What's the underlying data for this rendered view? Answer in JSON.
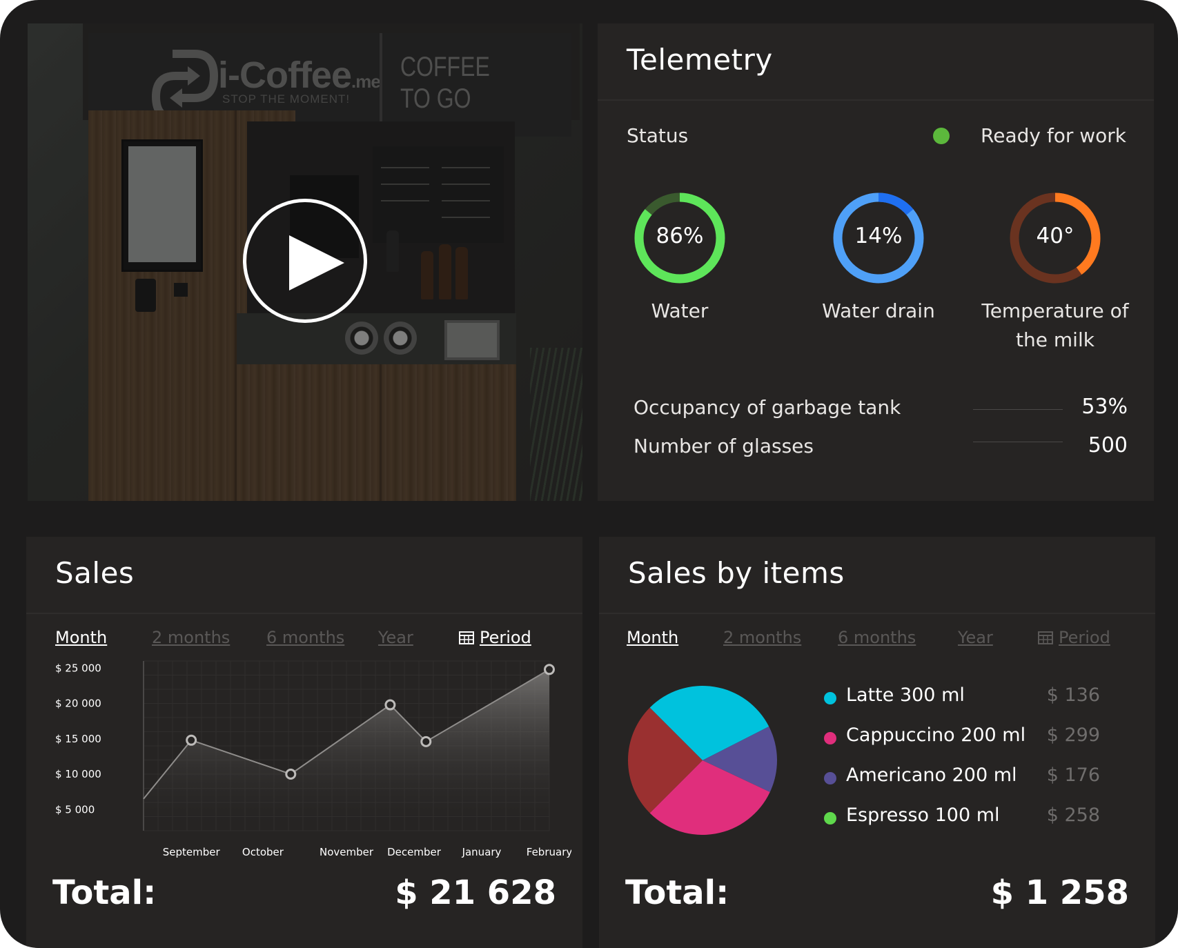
{
  "video": {
    "brand": "i-Coffee",
    "brand_suffix": ".me",
    "slogan": "STOP THE MOMENT!",
    "sign_line1": "COFFEE",
    "sign_line2": "TO GO"
  },
  "telemetry": {
    "title": "Telemetry",
    "status_label": "Status",
    "status_value": "Ready for work",
    "status_color": "#5cb83c",
    "gauges": [
      {
        "value_text": "86%",
        "fraction": 0.86,
        "label": "Water",
        "color": "#5ee55a",
        "track": "#3a5a2e"
      },
      {
        "value_text": "14%",
        "fraction": 0.14,
        "label": "Water drain",
        "color": "#1f6ff0",
        "track": "#4fa0f7"
      },
      {
        "value_text": "40°",
        "fraction": 0.4,
        "label": "Temperature of the milk",
        "color": "#ff7a1f",
        "track": "#6a3320"
      }
    ],
    "metrics": [
      {
        "label": "Occupancy of garbage tank",
        "value": "53%"
      },
      {
        "label": "Number of glasses",
        "value": "500"
      }
    ]
  },
  "sales": {
    "title": "Sales",
    "tabs": [
      "Month",
      "2 months",
      "6 months",
      "Year",
      "Period"
    ],
    "active_tab": "Month",
    "total_label": "Total:",
    "total_value": "$ 21 628"
  },
  "items": {
    "title": "Sales by items",
    "tabs": [
      "Month",
      "2 months",
      "6 months",
      "Year",
      "Period"
    ],
    "active_tab": "Month",
    "total_label": "Total:",
    "total_value": "$ 1 258",
    "legend": [
      {
        "label": "Latte 300 ml",
        "value": "$ 136",
        "color": "#00c2dd"
      },
      {
        "label": "Cappuccino 200 ml",
        "value": "$ 299",
        "color": "#e02e7c"
      },
      {
        "label": "Americano 200 ml",
        "value": "$ 176",
        "color": "#574f96"
      },
      {
        "label": "Espresso 100 ml",
        "value": "$ 258",
        "color": "#5fd84c"
      }
    ]
  },
  "chart_data": [
    {
      "type": "line",
      "categories": [
        "September",
        "October",
        "November",
        "December",
        "January",
        "February"
      ],
      "y_tick_labels": [
        "$ 25 000",
        "$ 20 000",
        "$ 15 000",
        "$ 10 000",
        "$ 5 000"
      ],
      "y_ticks": [
        25000,
        20000,
        15000,
        10000,
        5000
      ],
      "ylim": [
        2000,
        26000
      ],
      "points": [
        {
          "x": 0.0,
          "y": 6500
        },
        {
          "x": 0.6,
          "y": 14800
        },
        {
          "x": 1.85,
          "y": 10000
        },
        {
          "x": 3.1,
          "y": 19800
        },
        {
          "x": 3.55,
          "y": 14600
        },
        {
          "x": 5.1,
          "y": 24800
        }
      ],
      "marked_points": [
        1,
        2,
        3,
        4,
        5
      ],
      "grid": true,
      "fill": "gradient"
    },
    {
      "type": "pie",
      "slices": [
        {
          "name": "Latte 300 ml",
          "value": 0.3,
          "color": "#00c2dd"
        },
        {
          "name": "Americano 200 ml",
          "value": 0.145,
          "color": "#574f96"
        },
        {
          "name": "Cappuccino 200 ml",
          "value": 0.305,
          "color": "#e02e7c"
        },
        {
          "name": "",
          "value": 0.25,
          "color": "#9a3030"
        }
      ]
    }
  ]
}
